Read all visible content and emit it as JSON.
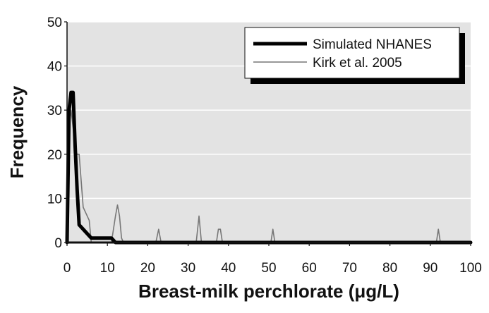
{
  "chart_data": {
    "type": "line",
    "title": "",
    "xlabel": "Breast-milk perchlorate (μg/L)",
    "ylabel": "Frequency",
    "xlim": [
      0,
      100
    ],
    "ylim": [
      0,
      50
    ],
    "xticks": [
      0,
      10,
      20,
      30,
      40,
      50,
      60,
      70,
      80,
      90,
      100
    ],
    "yticks": [
      0,
      10,
      20,
      30,
      40,
      50
    ],
    "grid": "horizontal",
    "legend_position": "top-right",
    "colors": {
      "plot_background": "#e3e3e3",
      "gridline": "#ffffff"
    },
    "series": [
      {
        "name": "Simulated NHANES",
        "color": "#000000",
        "x": [
          0,
          0.5,
          1,
          1.5,
          2,
          2.5,
          3,
          4,
          5,
          6,
          7,
          8,
          9,
          10,
          11,
          11.5,
          12,
          13,
          14,
          20,
          30,
          40,
          50,
          60,
          70,
          80,
          90,
          100
        ],
        "y": [
          0,
          30,
          34,
          34,
          22,
          12,
          4,
          3,
          2,
          1,
          1,
          1,
          1,
          1,
          1,
          0.5,
          0,
          0,
          0,
          0,
          0,
          0,
          0,
          0,
          0,
          0,
          0,
          0
        ]
      },
      {
        "name": "Kirk et al. 2005",
        "color": "#777777",
        "x": [
          0,
          0.5,
          1,
          1.5,
          2,
          2.5,
          3,
          3.5,
          4,
          5,
          5.5,
          6,
          7,
          8,
          10,
          11,
          12,
          12.5,
          13,
          13.5,
          14,
          22,
          22.7,
          23.3,
          32,
          32.7,
          33.3,
          37,
          37.5,
          38,
          38.5,
          50.5,
          51,
          51.5,
          91.5,
          92,
          92.5,
          100
        ],
        "y": [
          0,
          26,
          30,
          26,
          21,
          20,
          20,
          14,
          8,
          6,
          5,
          0,
          0,
          0,
          0,
          0,
          6,
          8.5,
          6,
          1,
          0,
          0,
          3,
          0,
          0,
          6,
          0,
          0,
          3,
          3,
          0,
          0,
          3,
          0,
          0,
          3,
          0,
          0
        ]
      }
    ]
  }
}
